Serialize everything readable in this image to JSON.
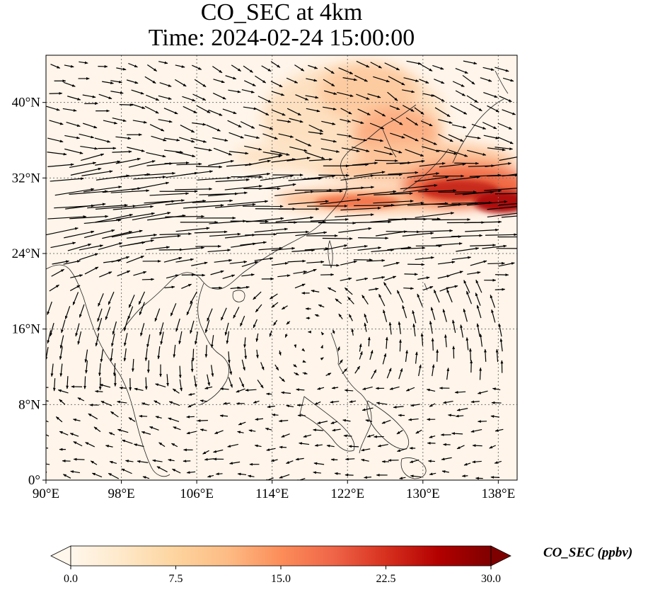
{
  "title": {
    "line1": "CO_SEC at 4km",
    "line2": "Time: 2024-02-24 15:00:00"
  },
  "map": {
    "projection": "PlateCarree",
    "lon_range": [
      90,
      140
    ],
    "lat_range": [
      0,
      45
    ],
    "lon_ticks": [
      {
        "value": 90,
        "label": "90°E"
      },
      {
        "value": 98,
        "label": "98°E"
      },
      {
        "value": 106,
        "label": "106°E"
      },
      {
        "value": 114,
        "label": "114°E"
      },
      {
        "value": 122,
        "label": "122°E"
      },
      {
        "value": 130,
        "label": "130°E"
      },
      {
        "value": 138,
        "label": "138°E"
      }
    ],
    "lat_ticks": [
      {
        "value": 0,
        "label": "0°"
      },
      {
        "value": 8,
        "label": "8°N"
      },
      {
        "value": 16,
        "label": "16°N"
      },
      {
        "value": 24,
        "label": "24°N"
      },
      {
        "value": 32,
        "label": "32°N"
      },
      {
        "value": 40,
        "label": "40°N"
      }
    ],
    "gridlines": true,
    "field": "CO_SEC",
    "field_units": "ppbv",
    "plume_core": {
      "lon_range": [
        118,
        140
      ],
      "lat_range": [
        28,
        33
      ],
      "peak_ppbv": 27
    }
  },
  "colorbar": {
    "label": "CO_SEC (ppbv)",
    "min": 0.0,
    "max": 30.0,
    "extend": "both",
    "ticks": [
      "0.0",
      "7.5",
      "15.0",
      "22.5",
      "30.0"
    ],
    "colormap": "OrRd",
    "colors": [
      "#fff7ec",
      "#fee8c8",
      "#fdd49e",
      "#fdbb84",
      "#fc8d59",
      "#ef6548",
      "#d7301f",
      "#b30000",
      "#7f0000"
    ]
  },
  "wind": {
    "style": "black quiver arrows",
    "color": "#000000",
    "dominant_flow": "westerly jet 24°N–34°N"
  }
}
